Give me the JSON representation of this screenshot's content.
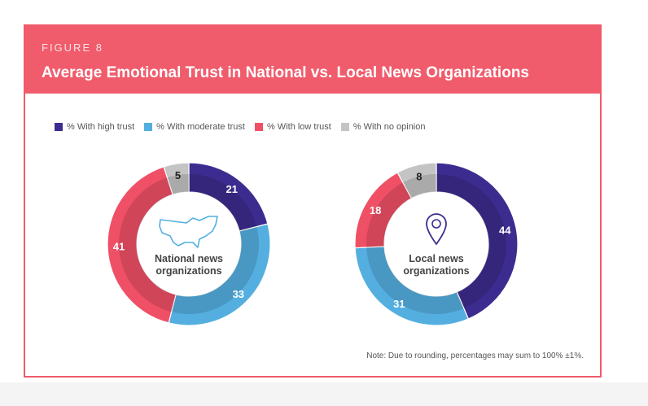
{
  "figure_label": "FIGURE 8",
  "title": "Average Emotional Trust in National vs. Local News Organizations",
  "note": "Note: Due to rounding, percentages may sum to 100% ±1%.",
  "colors": {
    "header": "#f05c6c",
    "high": "#3d2c8f",
    "moderate": "#54afe0",
    "low": "#ef5066",
    "no_opinion": "#c4c4c4"
  },
  "icons": {
    "national": "usa-map-icon",
    "local": "location-pin-icon"
  },
  "chart_data": [
    {
      "type": "pie",
      "center_label": [
        "National news",
        "organizations"
      ],
      "legend": [
        "% With high trust",
        "% With moderate trust",
        "% With low trust",
        "% With no opinion"
      ],
      "categories": [
        "% With high trust",
        "% With moderate trust",
        "% With low trust",
        "% With no opinion"
      ],
      "values": [
        21,
        33,
        41,
        5
      ]
    },
    {
      "type": "pie",
      "center_label": [
        "Local news",
        "organizations"
      ],
      "legend": [
        "% With high trust",
        "% With moderate trust",
        "% With low trust",
        "% With no opinion"
      ],
      "categories": [
        "% With high trust",
        "% With moderate trust",
        "% With low trust",
        "% With no opinion"
      ],
      "values": [
        44,
        31,
        18,
        8
      ]
    }
  ]
}
